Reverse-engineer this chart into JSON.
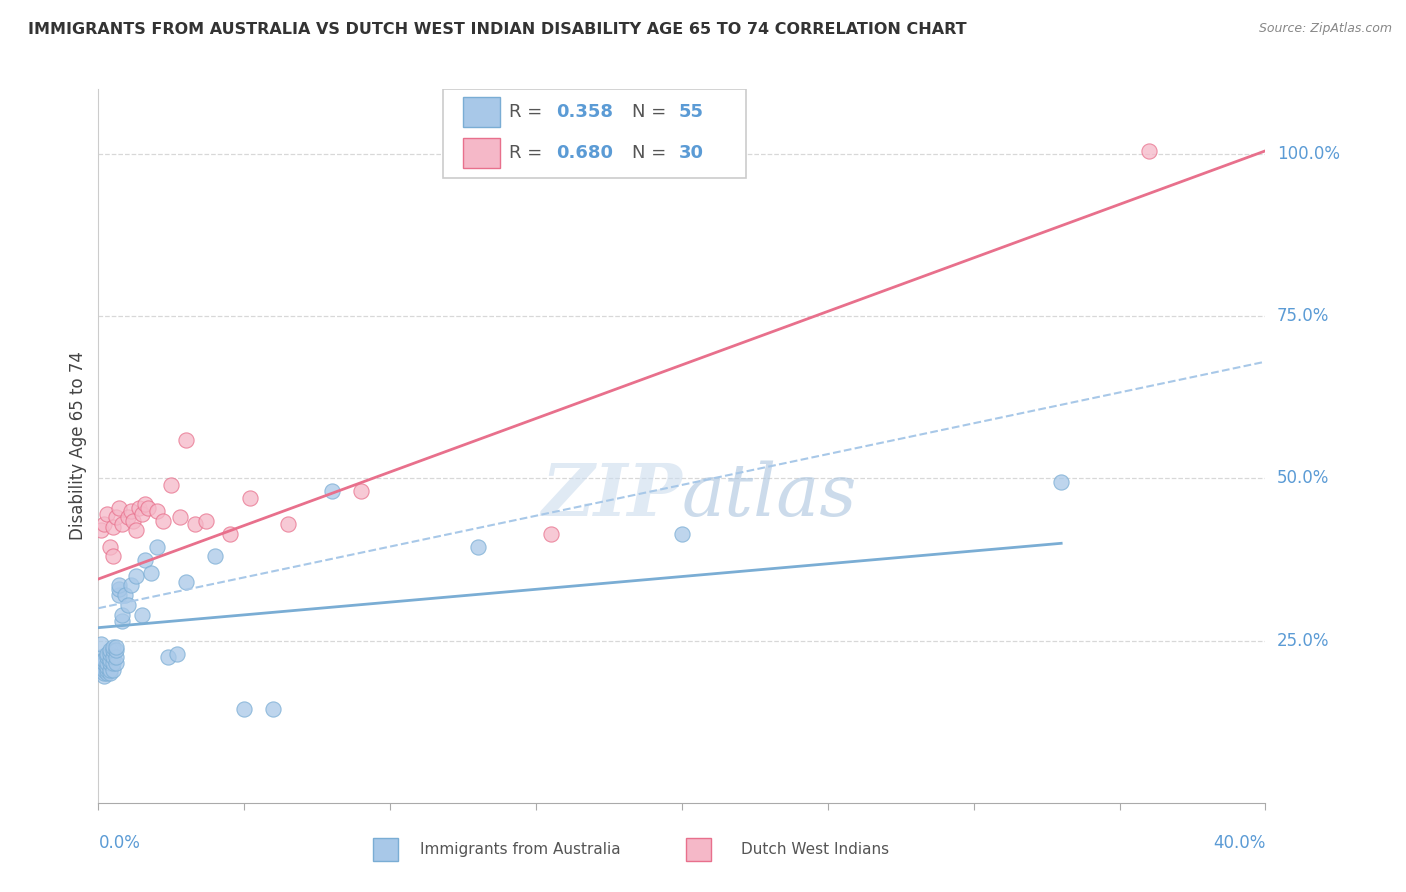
{
  "title": "IMMIGRANTS FROM AUSTRALIA VS DUTCH WEST INDIAN DISABILITY AGE 65 TO 74 CORRELATION CHART",
  "source": "Source: ZipAtlas.com",
  "ylabel": "Disability Age 65 to 74",
  "watermark_zip": "ZIP",
  "watermark_atlas": "atlas",
  "australia_R": 0.358,
  "australia_N": 55,
  "dwi_R": 0.68,
  "dwi_N": 30,
  "australia_color": "#a8c8e8",
  "australia_edge_color": "#7aadd4",
  "dwi_color": "#f5b8c8",
  "dwi_edge_color": "#e8708c",
  "xmin": 0.0,
  "xmax": 0.4,
  "ymin": 0.0,
  "ymax": 1.1,
  "ytick_labels": [
    "25.0%",
    "50.0%",
    "75.0%",
    "100.0%"
  ],
  "ytick_values": [
    0.25,
    0.5,
    0.75,
    1.0
  ],
  "australia_x": [
    0.0005,
    0.001,
    0.001,
    0.001,
    0.0015,
    0.0015,
    0.002,
    0.002,
    0.002,
    0.002,
    0.002,
    0.003,
    0.003,
    0.003,
    0.003,
    0.003,
    0.003,
    0.004,
    0.004,
    0.004,
    0.004,
    0.004,
    0.004,
    0.005,
    0.005,
    0.005,
    0.005,
    0.005,
    0.006,
    0.006,
    0.006,
    0.006,
    0.007,
    0.007,
    0.007,
    0.008,
    0.008,
    0.009,
    0.01,
    0.011,
    0.013,
    0.015,
    0.016,
    0.018,
    0.02,
    0.024,
    0.027,
    0.03,
    0.04,
    0.05,
    0.06,
    0.08,
    0.13,
    0.2,
    0.33
  ],
  "australia_y": [
    0.205,
    0.215,
    0.225,
    0.245,
    0.215,
    0.22,
    0.195,
    0.2,
    0.205,
    0.215,
    0.22,
    0.2,
    0.205,
    0.21,
    0.215,
    0.225,
    0.23,
    0.2,
    0.205,
    0.215,
    0.22,
    0.23,
    0.235,
    0.205,
    0.215,
    0.225,
    0.235,
    0.24,
    0.215,
    0.225,
    0.235,
    0.24,
    0.32,
    0.33,
    0.335,
    0.28,
    0.29,
    0.32,
    0.305,
    0.335,
    0.35,
    0.29,
    0.375,
    0.355,
    0.395,
    0.225,
    0.23,
    0.34,
    0.38,
    0.145,
    0.145,
    0.48,
    0.395,
    0.415,
    0.495
  ],
  "dwi_x": [
    0.001,
    0.002,
    0.003,
    0.004,
    0.005,
    0.005,
    0.006,
    0.007,
    0.008,
    0.01,
    0.011,
    0.012,
    0.013,
    0.014,
    0.015,
    0.016,
    0.017,
    0.02,
    0.022,
    0.025,
    0.028,
    0.03,
    0.033,
    0.037,
    0.045,
    0.052,
    0.065,
    0.09,
    0.155,
    0.36
  ],
  "dwi_y": [
    0.42,
    0.43,
    0.445,
    0.395,
    0.38,
    0.425,
    0.44,
    0.455,
    0.43,
    0.44,
    0.45,
    0.435,
    0.42,
    0.455,
    0.445,
    0.46,
    0.455,
    0.45,
    0.435,
    0.49,
    0.44,
    0.56,
    0.43,
    0.435,
    0.415,
    0.47,
    0.43,
    0.48,
    0.415,
    1.005
  ],
  "australia_trend_x": [
    0.0,
    0.33
  ],
  "australia_trend_y": [
    0.27,
    0.4
  ],
  "dwi_trend_x": [
    0.0,
    0.4
  ],
  "dwi_trend_y": [
    0.345,
    1.005
  ],
  "combined_trend_x": [
    0.0,
    0.4
  ],
  "combined_trend_y": [
    0.3,
    0.68
  ],
  "grid_color": "#d8d8d8",
  "title_color": "#333333",
  "axis_color": "#5b9bd5",
  "legend_bg_color": "#f0f4f8",
  "legend_border_color": "#cccccc",
  "australia_legend_label": "Immigrants from Australia",
  "dwi_legend_label": "Dutch West Indians"
}
